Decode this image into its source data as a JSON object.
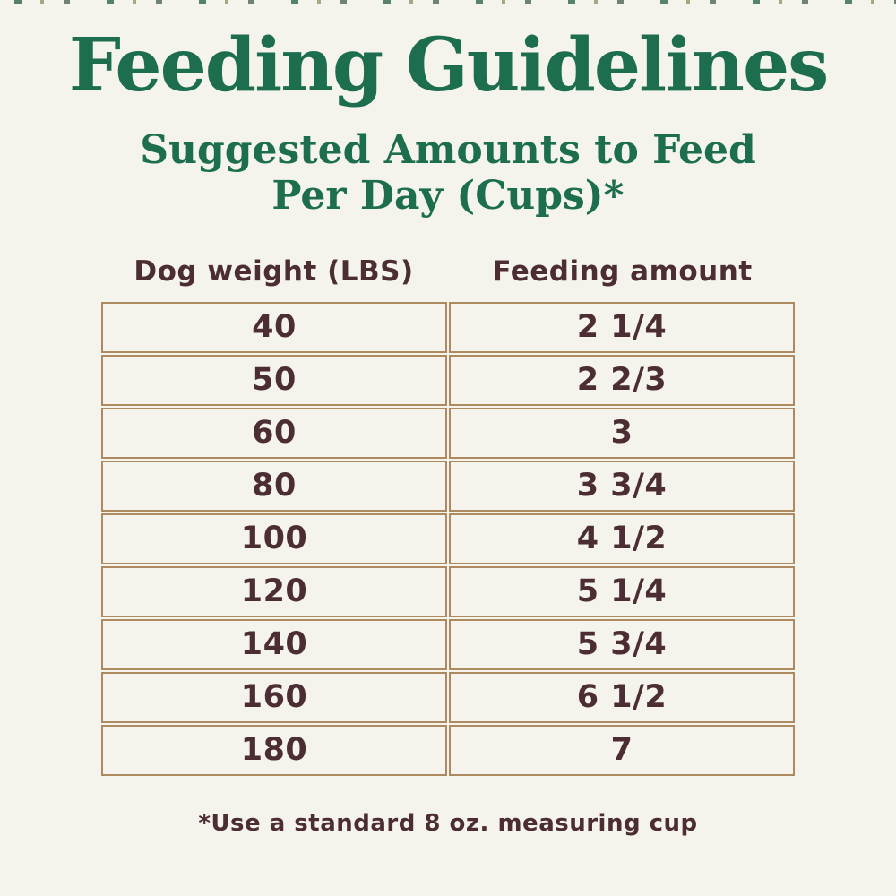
{
  "colors": {
    "background": "#f4f3ec",
    "title_green": "#1c6e4e",
    "text_brown": "#4b2d33",
    "table_border_tan": "#ae8a61"
  },
  "header": {
    "title": "Feeding Guidelines",
    "subtitle_line1": "Suggested Amounts to Feed",
    "subtitle_line2": "Per Day (Cups)*"
  },
  "table": {
    "col1_header": "Dog weight (LBS)",
    "col2_header": "Feeding amount",
    "rows": [
      {
        "weight": "40",
        "amount": "2 1/4"
      },
      {
        "weight": "50",
        "amount": "2 2/3"
      },
      {
        "weight": "60",
        "amount": "3"
      },
      {
        "weight": "80",
        "amount": "3 3/4"
      },
      {
        "weight": "100",
        "amount": "4 1/2"
      },
      {
        "weight": "120",
        "amount": "5 1/4"
      },
      {
        "weight": "140",
        "amount": "5 3/4"
      },
      {
        "weight": "160",
        "amount": "6 1/2"
      },
      {
        "weight": "180",
        "amount": "7"
      }
    ]
  },
  "footnote": "*Use a standard 8 oz. measuring cup",
  "chart_data": {
    "type": "table",
    "title": "Feeding Guidelines",
    "subtitle": "Suggested Amounts to Feed Per Day (Cups)*",
    "columns": [
      "Dog weight (LBS)",
      "Feeding amount"
    ],
    "rows": [
      [
        "40",
        "2 1/4"
      ],
      [
        "50",
        "2 2/3"
      ],
      [
        "60",
        "3"
      ],
      [
        "80",
        "3 3/4"
      ],
      [
        "100",
        "4 1/2"
      ],
      [
        "120",
        "5 1/4"
      ],
      [
        "140",
        "5 3/4"
      ],
      [
        "160",
        "6 1/2"
      ],
      [
        "180",
        "7"
      ]
    ],
    "footnote": "*Use a standard 8 oz. measuring cup"
  }
}
